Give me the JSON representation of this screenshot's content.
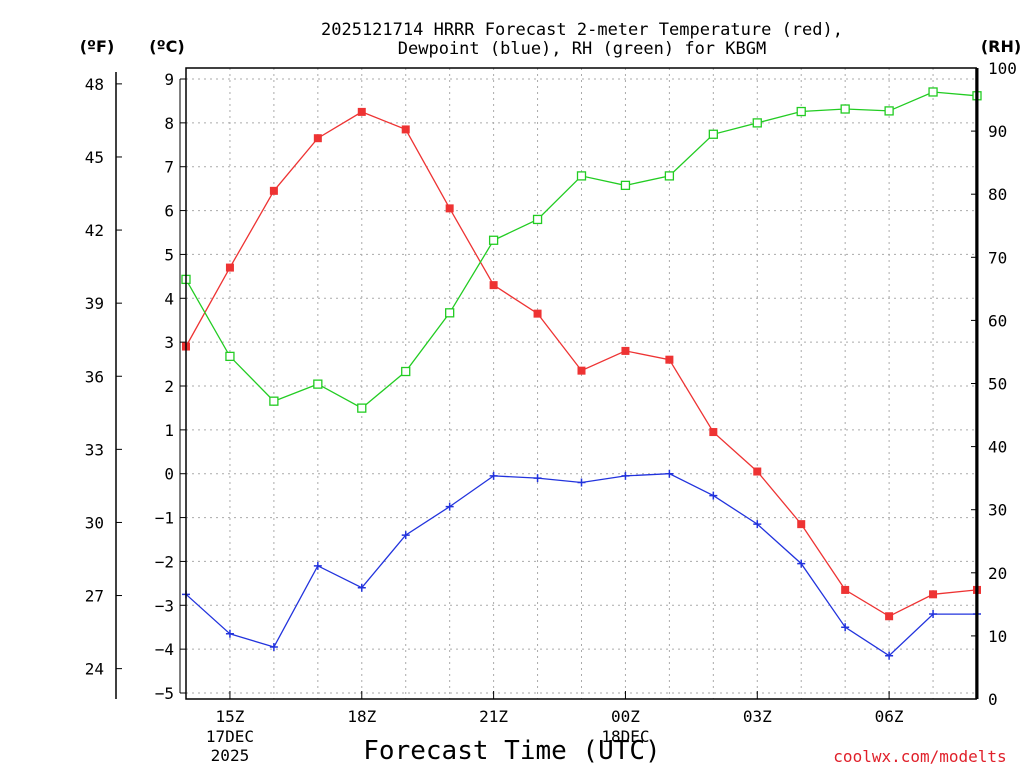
{
  "chart_data": {
    "type": "line",
    "title_line1": "2025121714 HRRR Forecast 2-meter Temperature (red),",
    "title_line2": "Dewpoint (blue), RH (green) for KBGM",
    "xlabel": "Forecast Time (UTC)",
    "credit": "coolwx.com/modelts",
    "unit_f": "(ºF)",
    "unit_c": "(ºC)",
    "unit_rh": "(RH)",
    "x_range_hours": [
      14,
      32
    ],
    "x_ticks": [
      {
        "hour": 15,
        "label": "15Z",
        "sub1": "17DEC",
        "sub2": "2025"
      },
      {
        "hour": 18,
        "label": "18Z",
        "sub1": "",
        "sub2": ""
      },
      {
        "hour": 21,
        "label": "21Z",
        "sub1": "",
        "sub2": ""
      },
      {
        "hour": 24,
        "label": "00Z",
        "sub1": "18DEC",
        "sub2": ""
      },
      {
        "hour": 27,
        "label": "03Z",
        "sub1": "",
        "sub2": ""
      },
      {
        "hour": 30,
        "label": "06Z",
        "sub1": "",
        "sub2": ""
      }
    ],
    "y_c_range": [
      -5,
      9
    ],
    "y_c_ticks": [
      "-5",
      "-4",
      "-3",
      "-2",
      "-1",
      "0",
      "1",
      "2",
      "3",
      "4",
      "5",
      "6",
      "7",
      "8",
      "9"
    ],
    "y_f_ticks": [
      "24",
      "27",
      "30",
      "33",
      "36",
      "39",
      "42",
      "45",
      "48"
    ],
    "y_rh_ticks": [
      "0",
      "10",
      "20",
      "30",
      "40",
      "50",
      "60",
      "70",
      "80",
      "90",
      "100"
    ],
    "hours": [
      14,
      15,
      16,
      17,
      18,
      19,
      20,
      21,
      22,
      23,
      24,
      25,
      26,
      27,
      28,
      29,
      30,
      31,
      32
    ],
    "series": [
      {
        "name": "Temperature",
        "unit": "C",
        "color": "#ee3333",
        "marker": "filled-square",
        "values": [
          2.9,
          4.7,
          6.45,
          7.65,
          8.25,
          7.85,
          6.05,
          4.3,
          3.65,
          2.35,
          2.8,
          2.6,
          0.95,
          0.05,
          -1.15,
          -2.65,
          -3.25,
          -2.75,
          -2.65
        ]
      },
      {
        "name": "Dewpoint",
        "unit": "C",
        "color": "#2233dd",
        "marker": "plus",
        "values": [
          -2.75,
          -3.65,
          -3.95,
          -2.1,
          -2.6,
          -1.4,
          -0.75,
          -0.05,
          -0.1,
          -0.2,
          -0.05,
          0.0,
          -0.5,
          -1.15,
          -2.05,
          -3.5,
          -4.15,
          -3.2,
          -3.2
        ]
      },
      {
        "name": "RH",
        "unit": "%",
        "color": "#22cc22",
        "marker": "open-square",
        "values": [
          66.5,
          54.3,
          47.2,
          49.9,
          46.1,
          51.9,
          61.2,
          72.7,
          76.0,
          82.9,
          81.4,
          82.9,
          89.5,
          91.3,
          93.1,
          93.5,
          93.2,
          96.2,
          95.6
        ]
      }
    ]
  }
}
